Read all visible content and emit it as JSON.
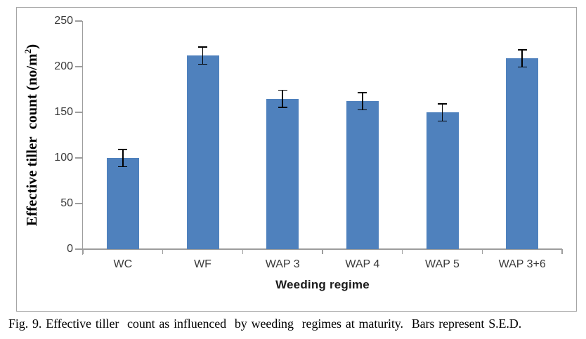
{
  "figure": {
    "caption": "Fig. 9. Effective tiller  count as influenced  by weeding  regimes at maturity.  Bars represent S.E.D."
  },
  "chart_data": {
    "type": "bar",
    "title": "",
    "categories": [
      "WC",
      "WF",
      "WAP 3",
      "WAP 4",
      "WAP 5",
      "WAP 3+6"
    ],
    "values": [
      100,
      212,
      165,
      162,
      150,
      209
    ],
    "errors": [
      10,
      10,
      10,
      10,
      10,
      10
    ],
    "error_meaning": "S.E.D.",
    "xlabel": "Weeding regime",
    "ylabel": "Effective tiller count (no/m²)",
    "ylabel_parts": {
      "main": "Effective tiller  count (no/m",
      "sup": "2",
      "close": ")"
    },
    "ylim": [
      0,
      250
    ],
    "yticks": [
      0,
      50,
      100,
      150,
      200,
      250
    ],
    "grid": false,
    "legend": "none",
    "bar_color": "#4f81bd",
    "error_color": "#000000",
    "axis_color": "#9d9d9d",
    "frame_color": "#a6a6a6"
  }
}
